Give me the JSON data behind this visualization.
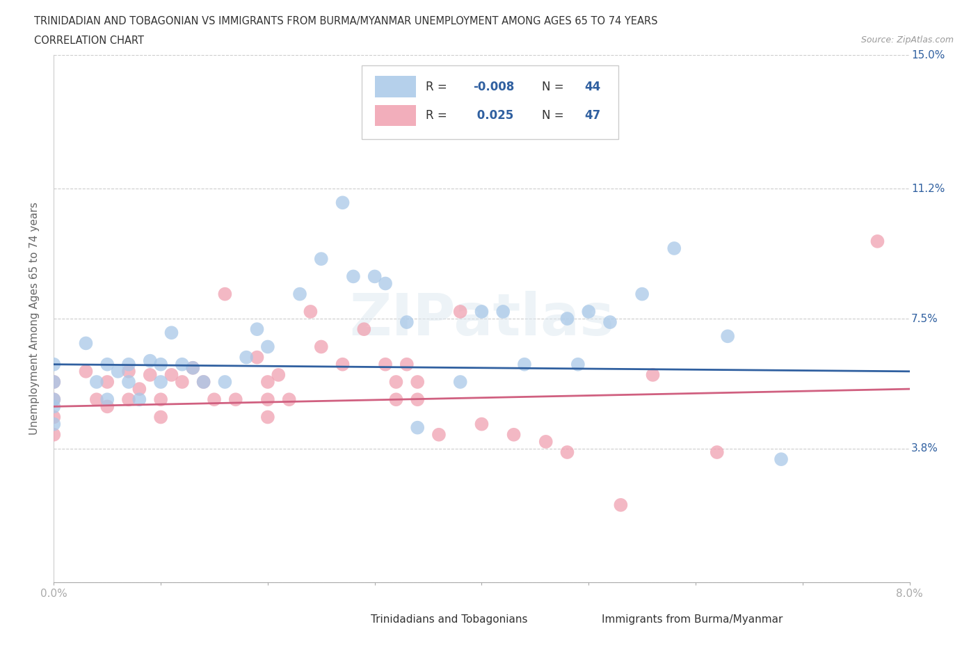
{
  "title_line1": "TRINIDADIAN AND TOBAGONIAN VS IMMIGRANTS FROM BURMA/MYANMAR UNEMPLOYMENT AMONG AGES 65 TO 74 YEARS",
  "title_line2": "CORRELATION CHART",
  "source": "Source: ZipAtlas.com",
  "ylabel": "Unemployment Among Ages 65 to 74 years",
  "xlim": [
    0.0,
    0.08
  ],
  "ylim": [
    0.0,
    0.15
  ],
  "yticks": [
    0.0,
    0.038,
    0.075,
    0.112,
    0.15
  ],
  "ytick_labels": [
    "",
    "3.8%",
    "7.5%",
    "11.2%",
    "15.0%"
  ],
  "xticks": [
    0.0,
    0.01,
    0.02,
    0.03,
    0.04,
    0.05,
    0.06,
    0.07,
    0.08
  ],
  "xtick_labels": [
    "0.0%",
    "",
    "",
    "",
    "",
    "",
    "",
    "",
    "8.0%"
  ],
  "watermark": "ZIPatlas",
  "blue_color": "#a8c8e8",
  "pink_color": "#f0a0b0",
  "blue_line_color": "#3060a0",
  "pink_line_color": "#d06080",
  "blue_r": -0.008,
  "pink_r": 0.025,
  "blue_scatter": [
    [
      0.0,
      0.062
    ],
    [
      0.0,
      0.052
    ],
    [
      0.0,
      0.057
    ],
    [
      0.0,
      0.045
    ],
    [
      0.0,
      0.05
    ],
    [
      0.003,
      0.068
    ],
    [
      0.004,
      0.057
    ],
    [
      0.005,
      0.052
    ],
    [
      0.005,
      0.062
    ],
    [
      0.006,
      0.06
    ],
    [
      0.007,
      0.057
    ],
    [
      0.007,
      0.062
    ],
    [
      0.008,
      0.052
    ],
    [
      0.009,
      0.063
    ],
    [
      0.01,
      0.057
    ],
    [
      0.01,
      0.062
    ],
    [
      0.011,
      0.071
    ],
    [
      0.012,
      0.062
    ],
    [
      0.013,
      0.061
    ],
    [
      0.014,
      0.057
    ],
    [
      0.016,
      0.057
    ],
    [
      0.018,
      0.064
    ],
    [
      0.019,
      0.072
    ],
    [
      0.02,
      0.067
    ],
    [
      0.023,
      0.082
    ],
    [
      0.025,
      0.092
    ],
    [
      0.027,
      0.108
    ],
    [
      0.028,
      0.087
    ],
    [
      0.03,
      0.087
    ],
    [
      0.031,
      0.085
    ],
    [
      0.033,
      0.074
    ],
    [
      0.034,
      0.044
    ],
    [
      0.038,
      0.057
    ],
    [
      0.04,
      0.077
    ],
    [
      0.042,
      0.077
    ],
    [
      0.044,
      0.062
    ],
    [
      0.048,
      0.075
    ],
    [
      0.049,
      0.062
    ],
    [
      0.05,
      0.077
    ],
    [
      0.052,
      0.074
    ],
    [
      0.055,
      0.082
    ],
    [
      0.058,
      0.095
    ],
    [
      0.063,
      0.07
    ],
    [
      0.068,
      0.035
    ]
  ],
  "pink_scatter": [
    [
      0.0,
      0.057
    ],
    [
      0.0,
      0.052
    ],
    [
      0.0,
      0.047
    ],
    [
      0.0,
      0.042
    ],
    [
      0.003,
      0.06
    ],
    [
      0.004,
      0.052
    ],
    [
      0.005,
      0.057
    ],
    [
      0.005,
      0.05
    ],
    [
      0.007,
      0.06
    ],
    [
      0.007,
      0.052
    ],
    [
      0.008,
      0.055
    ],
    [
      0.009,
      0.059
    ],
    [
      0.01,
      0.052
    ],
    [
      0.01,
      0.047
    ],
    [
      0.011,
      0.059
    ],
    [
      0.012,
      0.057
    ],
    [
      0.013,
      0.061
    ],
    [
      0.014,
      0.057
    ],
    [
      0.015,
      0.052
    ],
    [
      0.016,
      0.082
    ],
    [
      0.017,
      0.052
    ],
    [
      0.019,
      0.064
    ],
    [
      0.02,
      0.057
    ],
    [
      0.02,
      0.052
    ],
    [
      0.02,
      0.047
    ],
    [
      0.021,
      0.059
    ],
    [
      0.022,
      0.052
    ],
    [
      0.024,
      0.077
    ],
    [
      0.025,
      0.067
    ],
    [
      0.027,
      0.062
    ],
    [
      0.029,
      0.072
    ],
    [
      0.031,
      0.062
    ],
    [
      0.032,
      0.057
    ],
    [
      0.032,
      0.052
    ],
    [
      0.033,
      0.062
    ],
    [
      0.034,
      0.057
    ],
    [
      0.034,
      0.052
    ],
    [
      0.036,
      0.042
    ],
    [
      0.038,
      0.077
    ],
    [
      0.04,
      0.045
    ],
    [
      0.043,
      0.042
    ],
    [
      0.046,
      0.04
    ],
    [
      0.048,
      0.037
    ],
    [
      0.053,
      0.022
    ],
    [
      0.056,
      0.059
    ],
    [
      0.062,
      0.037
    ],
    [
      0.077,
      0.097
    ]
  ]
}
